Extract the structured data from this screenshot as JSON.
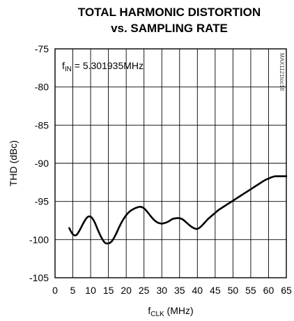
{
  "chart_data": {
    "type": "line",
    "title": "TOTAL HARMONIC DISTORTION",
    "subtitle": "vs. SAMPLING RATE",
    "xlabel_main": "f",
    "xlabel_sub": "CLK",
    "xlabel_unit": " (MHz)",
    "ylabel": "THD (dBc)",
    "xlim": [
      0,
      65
    ],
    "ylim": [
      -105,
      -75
    ],
    "xticks": [
      0,
      5,
      10,
      15,
      20,
      25,
      30,
      35,
      40,
      45,
      50,
      55,
      60,
      65
    ],
    "yticks": [
      -75,
      -80,
      -85,
      -90,
      -95,
      -100,
      -105
    ],
    "grid": true,
    "annotation_main": "f",
    "annotation_sub": "IN",
    "annotation_rest": " = 5.301935MHz",
    "watermark": "MAX1121toc18",
    "series": [
      {
        "x": [
          4,
          5,
          6,
          7,
          8,
          9,
          10,
          11,
          12,
          13,
          14,
          15,
          16,
          17,
          18,
          19,
          20,
          21,
          22,
          23,
          24,
          25,
          26,
          27,
          28,
          29,
          30,
          31,
          32,
          33,
          34,
          35,
          36,
          37,
          38,
          39,
          40,
          41,
          42,
          43,
          44,
          45,
          46,
          47,
          48,
          49,
          50,
          51,
          52,
          53,
          54,
          55,
          56,
          57,
          58,
          59,
          60,
          61,
          62,
          63,
          64,
          65
        ],
        "y": [
          -98.5,
          -99.3,
          -99.4,
          -98.7,
          -97.8,
          -97.1,
          -97.0,
          -97.6,
          -98.7,
          -99.7,
          -100.4,
          -100.5,
          -100.2,
          -99.4,
          -98.4,
          -97.5,
          -96.8,
          -96.3,
          -96.0,
          -95.8,
          -95.7,
          -95.9,
          -96.4,
          -97.0,
          -97.5,
          -97.8,
          -97.9,
          -97.8,
          -97.6,
          -97.3,
          -97.2,
          -97.2,
          -97.4,
          -97.8,
          -98.2,
          -98.5,
          -98.6,
          -98.3,
          -97.8,
          -97.3,
          -96.9,
          -96.5,
          -96.1,
          -95.8,
          -95.5,
          -95.2,
          -94.9,
          -94.6,
          -94.3,
          -94.0,
          -93.7,
          -93.4,
          -93.1,
          -92.8,
          -92.5,
          -92.2,
          -92.0,
          -91.8,
          -91.7,
          -91.7,
          -91.7,
          -91.7
        ]
      }
    ]
  }
}
